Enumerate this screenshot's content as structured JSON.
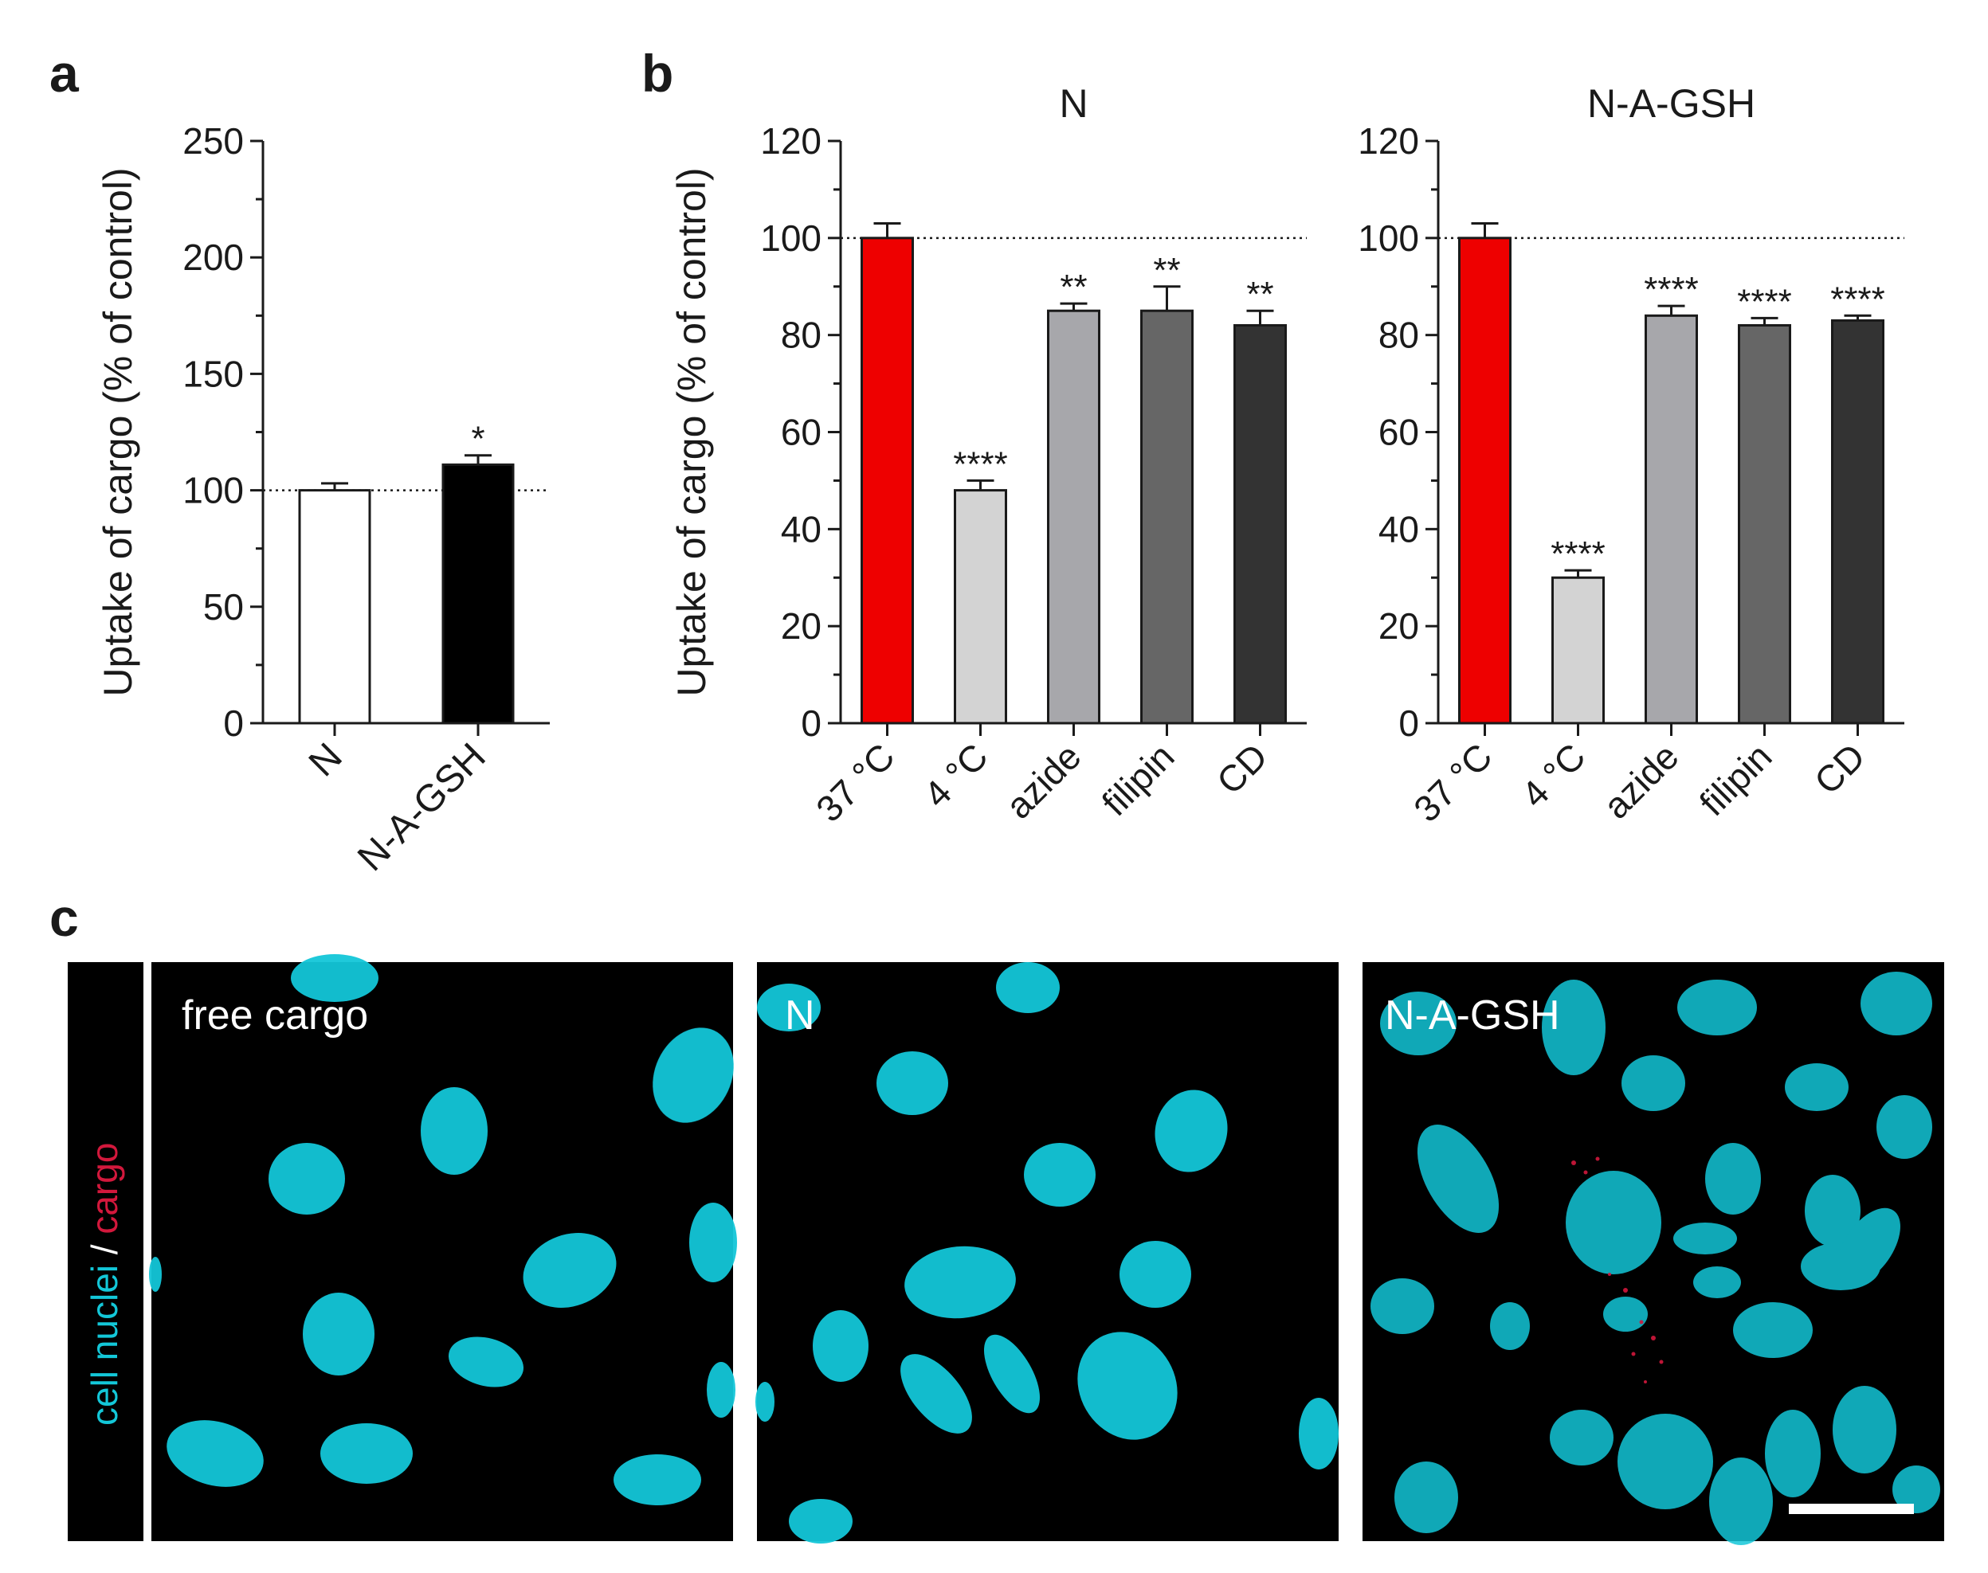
{
  "panels": {
    "a": {
      "letter": "a"
    },
    "b": {
      "letter": "b"
    },
    "c": {
      "letter": "c"
    }
  },
  "colors": {
    "red": "#ee0000",
    "light_gray": "#d3d3d3",
    "mid_gray": "#a7a7ab",
    "dark_gray": "#666666",
    "darkest_gray": "#333333",
    "white": "#ffffff",
    "black": "#000000",
    "cyan": "#13c7d8",
    "cargo_red": "#d2183c"
  },
  "chart_data": [
    {
      "id": "a",
      "type": "bar",
      "title": "",
      "ylabel": "Uptake of cargo (% of control)",
      "ylim": [
        0,
        250
      ],
      "yticks": [
        0,
        50,
        100,
        150,
        200,
        250
      ],
      "categories": [
        "N",
        "N-A-GSH"
      ],
      "values": [
        100,
        111
      ],
      "errors": [
        3,
        4
      ],
      "significance": [
        "",
        "*"
      ],
      "bar_colors": [
        "#ffffff",
        "#000000"
      ],
      "reference_line": 100
    },
    {
      "id": "b-left",
      "type": "bar",
      "title": "N",
      "ylabel": "Uptake of cargo (% of control)",
      "ylim": [
        0,
        120
      ],
      "yticks": [
        0,
        20,
        40,
        60,
        80,
        100,
        120
      ],
      "categories": [
        "37 °C",
        "4 °C",
        "azide",
        "filipin",
        "CD"
      ],
      "values": [
        100,
        48,
        85,
        85,
        82
      ],
      "errors": [
        3,
        2,
        1.5,
        5,
        3
      ],
      "significance": [
        "",
        "****",
        "**",
        "**",
        "**"
      ],
      "bar_colors": [
        "#ee0000",
        "#d3d3d3",
        "#a7a7ab",
        "#666666",
        "#333333"
      ],
      "reference_line": 100
    },
    {
      "id": "b-right",
      "type": "bar",
      "title": "N-A-GSH",
      "ylabel": "",
      "ylim": [
        0,
        120
      ],
      "yticks": [
        0,
        20,
        40,
        60,
        80,
        100,
        120
      ],
      "categories": [
        "37 °C",
        "4 °C",
        "azide",
        "filipin",
        "CD"
      ],
      "values": [
        100,
        30,
        84,
        82,
        83
      ],
      "errors": [
        3,
        1.5,
        2,
        1.5,
        1
      ],
      "significance": [
        "",
        "****",
        "****",
        "****",
        "****"
      ],
      "bar_colors": [
        "#ee0000",
        "#d3d3d3",
        "#a7a7ab",
        "#666666",
        "#333333"
      ],
      "reference_line": 100
    }
  ],
  "microscopy": {
    "side_label": {
      "part1": "cell nuclei",
      "separator": " / ",
      "part2": "cargo"
    },
    "images": [
      {
        "label": "free cargo"
      },
      {
        "label": "N"
      },
      {
        "label": "N-A-GSH"
      }
    ]
  }
}
